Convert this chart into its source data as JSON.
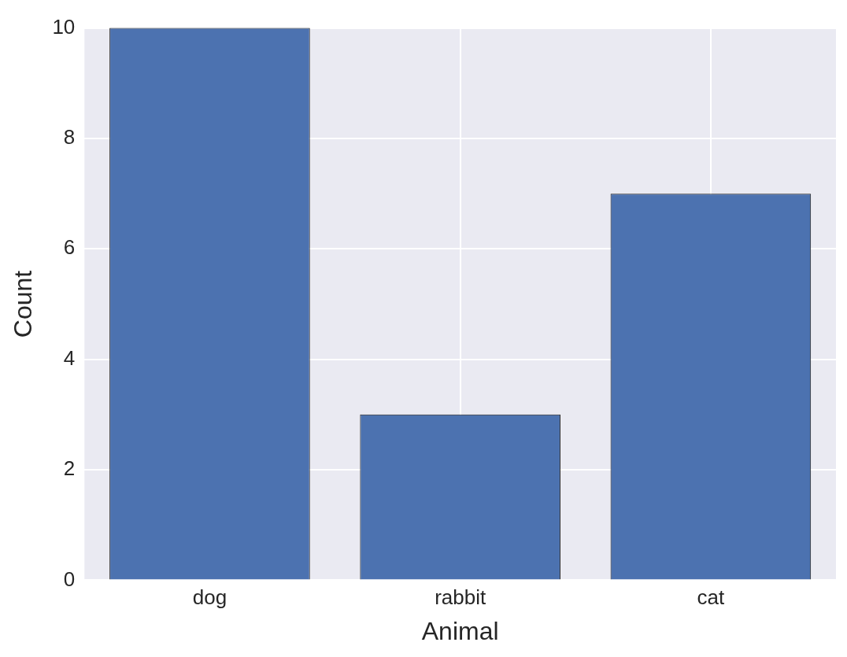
{
  "chart_data": {
    "type": "bar",
    "xlabel": "Animal",
    "ylabel": "Count",
    "categories": [
      "dog",
      "rabbit",
      "cat"
    ],
    "values": [
      10,
      3,
      7
    ],
    "color": "#4c72b0",
    "ylim": [
      0,
      10
    ],
    "yticks": [
      0,
      2,
      4,
      6,
      8,
      10
    ],
    "grid": true,
    "legend": false
  }
}
